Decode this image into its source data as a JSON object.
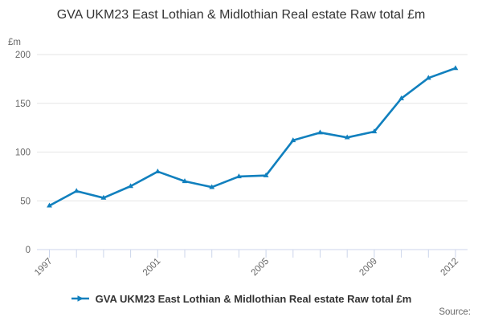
{
  "chart_data": {
    "type": "line",
    "title": "GVA UKM23 East Lothian & Midlothian Real estate Raw total £m",
    "xlabel": "",
    "ylabel": "£m",
    "x": [
      1997,
      1998,
      1999,
      2000,
      2001,
      2002,
      2003,
      2004,
      2005,
      2006,
      2007,
      2008,
      2009,
      2010,
      2011,
      2012
    ],
    "values": [
      45,
      60,
      53,
      65,
      80,
      70,
      64,
      75,
      76,
      112,
      120,
      115,
      121,
      155,
      176,
      186
    ],
    "ylim": [
      0,
      200
    ],
    "yticks": [
      0,
      50,
      100,
      150,
      200
    ],
    "xtick_labels": [
      1997,
      2001,
      2005,
      2009,
      2012
    ],
    "grid": true,
    "legend_position": "bottom"
  },
  "legend": {
    "label": "GVA UKM23 East Lothian & Midlothian Real estate Raw total £m"
  },
  "source": {
    "label": "Source:"
  },
  "colors": {
    "series": "#1180be",
    "grid": "#e6e6e6",
    "axis_line": "#ccd6eb",
    "tick": "#ccd6eb",
    "axis_text": "#666666",
    "title_text": "#333333"
  }
}
